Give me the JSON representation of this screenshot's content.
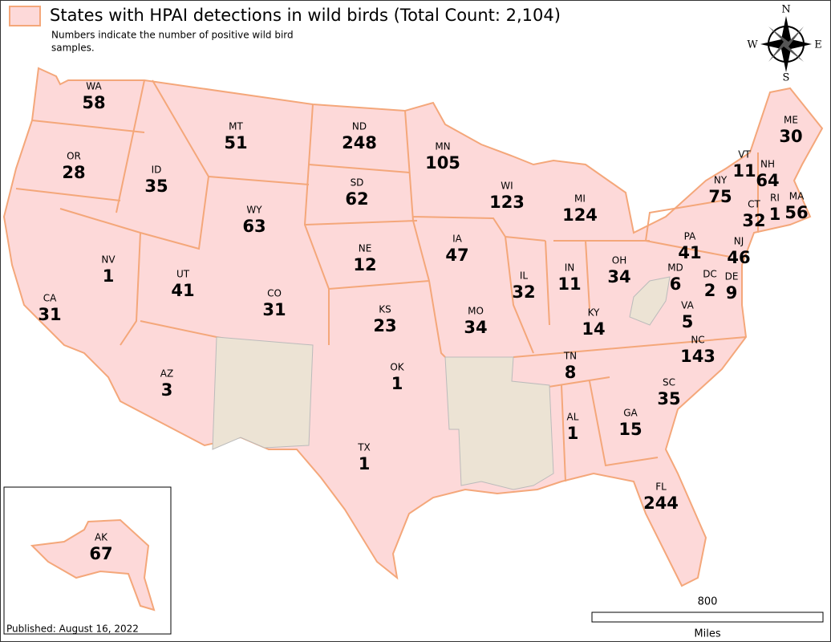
{
  "legend": {
    "title": "States with HPAI detections in wild birds (Total Count: 2,104)",
    "note": [
      "Numbers indicate the number of positive wild bird",
      "samples."
    ]
  },
  "compass": {
    "n": "N",
    "e": "E",
    "s": "S",
    "w": "W"
  },
  "states": [
    {
      "abbr": "WA",
      "count": 58
    },
    {
      "abbr": "OR",
      "count": 28
    },
    {
      "abbr": "ID",
      "count": 35
    },
    {
      "abbr": "MT",
      "count": 51
    },
    {
      "abbr": "ND",
      "count": 248
    },
    {
      "abbr": "MN",
      "count": 105
    },
    {
      "abbr": "WI",
      "count": 123
    },
    {
      "abbr": "MI",
      "count": 124
    },
    {
      "abbr": "ME",
      "count": 30
    },
    {
      "abbr": "VT",
      "count": 11
    },
    {
      "abbr": "NH",
      "count": 64
    },
    {
      "abbr": "NY",
      "count": 75
    },
    {
      "abbr": "MA",
      "count": 56
    },
    {
      "abbr": "RI",
      "count": 1
    },
    {
      "abbr": "CT",
      "count": 32
    },
    {
      "abbr": "SD",
      "count": 62
    },
    {
      "abbr": "WY",
      "count": 63
    },
    {
      "abbr": "NV",
      "count": 1
    },
    {
      "abbr": "UT",
      "count": 41
    },
    {
      "abbr": "CA",
      "count": 31
    },
    {
      "abbr": "CO",
      "count": 31
    },
    {
      "abbr": "NE",
      "count": 12
    },
    {
      "abbr": "IA",
      "count": 47
    },
    {
      "abbr": "IL",
      "count": 32
    },
    {
      "abbr": "IN",
      "count": 11
    },
    {
      "abbr": "OH",
      "count": 34
    },
    {
      "abbr": "PA",
      "count": 41
    },
    {
      "abbr": "NJ",
      "count": 46
    },
    {
      "abbr": "MD",
      "count": 6
    },
    {
      "abbr": "DC",
      "count": 2
    },
    {
      "abbr": "DE",
      "count": 9
    },
    {
      "abbr": "KS",
      "count": 23
    },
    {
      "abbr": "MO",
      "count": 34
    },
    {
      "abbr": "KY",
      "count": 14
    },
    {
      "abbr": "VA",
      "count": 5
    },
    {
      "abbr": "NC",
      "count": 143
    },
    {
      "abbr": "TN",
      "count": 8
    },
    {
      "abbr": "OK",
      "count": 1
    },
    {
      "abbr": "AZ",
      "count": 3
    },
    {
      "abbr": "SC",
      "count": 35
    },
    {
      "abbr": "AL",
      "count": 1
    },
    {
      "abbr": "GA",
      "count": 15
    },
    {
      "abbr": "TX",
      "count": 1
    },
    {
      "abbr": "FL",
      "count": 244
    },
    {
      "abbr": "AK",
      "count": 67
    }
  ],
  "scale": {
    "distance": "800",
    "unit": "Miles"
  },
  "footer": {
    "published": "Published: August 16, 2022"
  }
}
